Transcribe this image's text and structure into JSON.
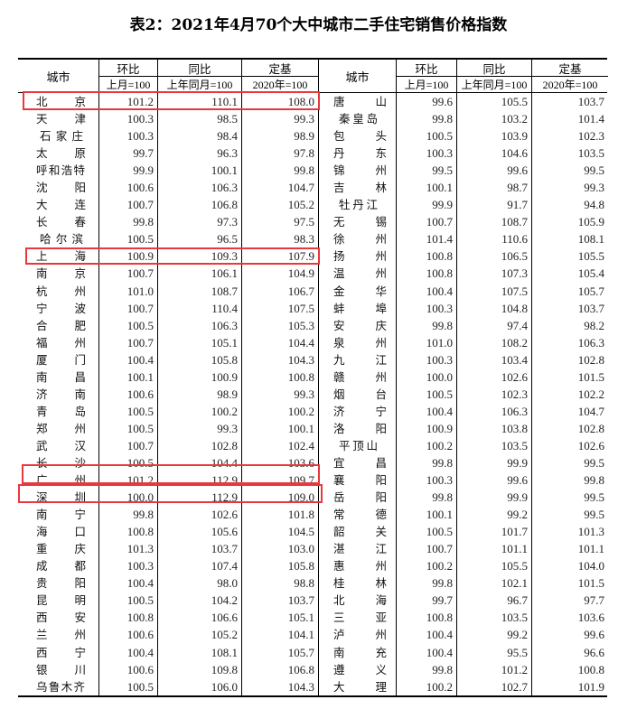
{
  "title": "表2：2021年4月70个大中城市二手住宅销售价格指数",
  "header": {
    "city": "城市",
    "mom": "环比",
    "yoy": "同比",
    "base": "定基",
    "mom_base": "上月=100",
    "yoy_base": "上年同月=100",
    "base_base": "2020年=100"
  },
  "highlight_color": "#e8383d",
  "left": [
    [
      "北京",
      "101.2",
      "110.1",
      "108.0"
    ],
    [
      "天津",
      "100.3",
      "98.5",
      "99.3"
    ],
    [
      "石家庄",
      "100.3",
      "98.4",
      "98.9"
    ],
    [
      "太原",
      "99.7",
      "96.3",
      "97.8"
    ],
    [
      "呼和浩特",
      "99.9",
      "100.1",
      "99.8"
    ],
    [
      "沈阳",
      "100.6",
      "106.3",
      "104.7"
    ],
    [
      "大连",
      "100.7",
      "106.8",
      "105.2"
    ],
    [
      "长春",
      "99.8",
      "97.3",
      "97.5"
    ],
    [
      "哈尔滨",
      "100.5",
      "96.5",
      "98.3"
    ],
    [
      "上海",
      "100.9",
      "109.3",
      "107.9"
    ],
    [
      "南京",
      "100.7",
      "106.1",
      "104.9"
    ],
    [
      "杭州",
      "101.0",
      "108.7",
      "106.7"
    ],
    [
      "宁波",
      "100.7",
      "110.4",
      "107.5"
    ],
    [
      "合肥",
      "100.5",
      "106.3",
      "105.3"
    ],
    [
      "福州",
      "100.7",
      "105.1",
      "104.4"
    ],
    [
      "厦门",
      "100.4",
      "105.8",
      "104.3"
    ],
    [
      "南昌",
      "100.1",
      "100.9",
      "100.8"
    ],
    [
      "济南",
      "100.6",
      "98.9",
      "99.3"
    ],
    [
      "青岛",
      "100.5",
      "100.2",
      "100.2"
    ],
    [
      "郑州",
      "100.5",
      "99.3",
      "100.1"
    ],
    [
      "武汉",
      "100.7",
      "102.8",
      "102.4"
    ],
    [
      "长沙",
      "100.5",
      "104.4",
      "103.6"
    ],
    [
      "广州",
      "101.2",
      "112.9",
      "109.7"
    ],
    [
      "深圳",
      "100.0",
      "112.9",
      "109.0"
    ],
    [
      "南宁",
      "99.8",
      "102.6",
      "101.8"
    ],
    [
      "海口",
      "100.8",
      "105.6",
      "104.5"
    ],
    [
      "重庆",
      "101.3",
      "103.7",
      "103.0"
    ],
    [
      "成都",
      "100.3",
      "107.4",
      "105.8"
    ],
    [
      "贵阳",
      "100.4",
      "98.0",
      "98.8"
    ],
    [
      "昆明",
      "100.5",
      "104.2",
      "103.7"
    ],
    [
      "西安",
      "100.8",
      "106.6",
      "105.1"
    ],
    [
      "兰州",
      "100.6",
      "105.2",
      "104.1"
    ],
    [
      "西宁",
      "100.4",
      "108.1",
      "105.7"
    ],
    [
      "银川",
      "100.6",
      "109.8",
      "106.8"
    ],
    [
      "乌鲁木齐",
      "100.5",
      "106.0",
      "104.3"
    ]
  ],
  "right": [
    [
      "唐山",
      "99.6",
      "105.5",
      "103.7"
    ],
    [
      "秦皇岛",
      "99.8",
      "103.2",
      "101.4"
    ],
    [
      "包头",
      "100.5",
      "103.9",
      "102.3"
    ],
    [
      "丹东",
      "100.3",
      "104.6",
      "103.5"
    ],
    [
      "锦州",
      "99.5",
      "99.6",
      "99.5"
    ],
    [
      "吉林",
      "100.1",
      "98.7",
      "99.3"
    ],
    [
      "牡丹江",
      "99.9",
      "91.7",
      "94.8"
    ],
    [
      "无锡",
      "100.7",
      "108.7",
      "105.9"
    ],
    [
      "徐州",
      "101.4",
      "110.6",
      "108.1"
    ],
    [
      "扬州",
      "100.8",
      "106.5",
      "105.5"
    ],
    [
      "温州",
      "100.8",
      "107.3",
      "105.4"
    ],
    [
      "金华",
      "100.4",
      "107.5",
      "105.7"
    ],
    [
      "蚌埠",
      "100.3",
      "104.8",
      "103.7"
    ],
    [
      "安庆",
      "99.8",
      "97.4",
      "98.2"
    ],
    [
      "泉州",
      "101.0",
      "108.2",
      "106.3"
    ],
    [
      "九江",
      "100.3",
      "103.4",
      "102.8"
    ],
    [
      "赣州",
      "100.0",
      "102.6",
      "101.5"
    ],
    [
      "烟台",
      "100.5",
      "102.3",
      "102.2"
    ],
    [
      "济宁",
      "100.4",
      "106.3",
      "104.7"
    ],
    [
      "洛阳",
      "100.9",
      "103.8",
      "102.8"
    ],
    [
      "平顶山",
      "100.2",
      "103.5",
      "102.6"
    ],
    [
      "宜昌",
      "99.8",
      "99.9",
      "99.5"
    ],
    [
      "襄阳",
      "100.3",
      "99.6",
      "99.8"
    ],
    [
      "岳阳",
      "99.8",
      "99.9",
      "99.5"
    ],
    [
      "常德",
      "100.1",
      "99.2",
      "99.5"
    ],
    [
      "韶关",
      "100.5",
      "101.7",
      "101.3"
    ],
    [
      "湛江",
      "100.7",
      "101.1",
      "101.1"
    ],
    [
      "惠州",
      "100.2",
      "105.5",
      "104.0"
    ],
    [
      "桂林",
      "99.8",
      "102.1",
      "101.5"
    ],
    [
      "北海",
      "99.7",
      "96.7",
      "97.7"
    ],
    [
      "三亚",
      "100.8",
      "103.5",
      "103.6"
    ],
    [
      "泸州",
      "100.4",
      "99.2",
      "99.6"
    ],
    [
      "南充",
      "100.4",
      "95.5",
      "96.6"
    ],
    [
      "遵义",
      "99.8",
      "101.2",
      "100.8"
    ],
    [
      "大理",
      "100.2",
      "102.7",
      "101.9"
    ]
  ]
}
